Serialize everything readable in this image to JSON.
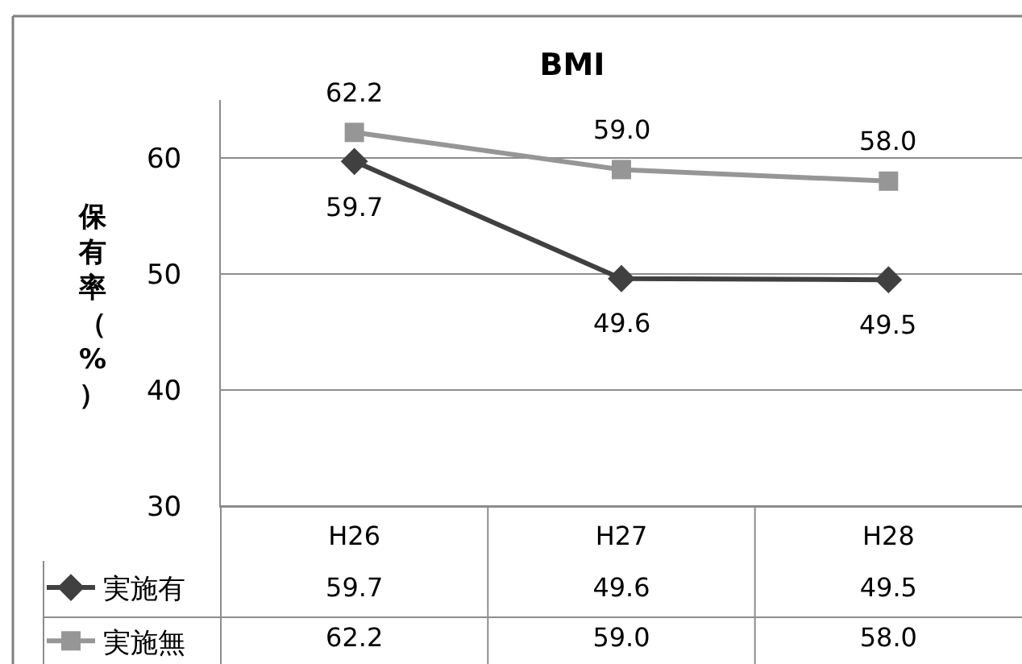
{
  "chart_data": {
    "type": "line",
    "title": "BMI",
    "ylabel": "保有率（%）",
    "categories": [
      "H26",
      "H27",
      "H28"
    ],
    "series": [
      {
        "name": "実施有",
        "color": "#404040",
        "marker": "diamond",
        "values": [
          59.7,
          49.6,
          49.5
        ],
        "value_labels": [
          "59.7",
          "49.6",
          "49.5"
        ]
      },
      {
        "name": "実施無",
        "color": "#969696",
        "marker": "square",
        "values": [
          62.2,
          59.0,
          58.0
        ],
        "value_labels": [
          "62.2",
          "59.0",
          "58.0"
        ]
      }
    ],
    "ylim": [
      30,
      65
    ],
    "yticks": [
      30,
      40,
      50,
      60
    ],
    "grid": "y",
    "legend": "bottom left",
    "line_style": "solid"
  }
}
